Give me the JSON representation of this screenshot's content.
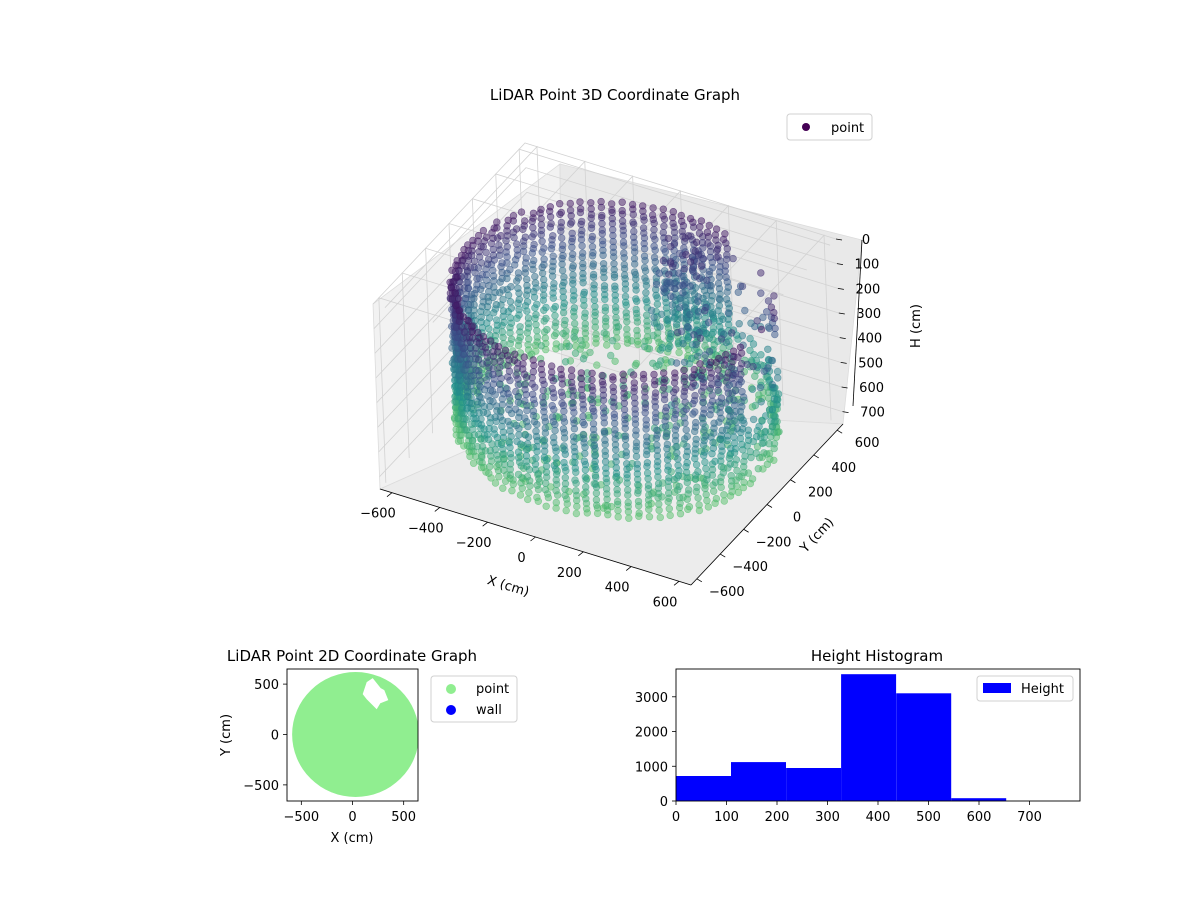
{
  "figure": {
    "background": "#ffffff"
  },
  "chart_data": [
    {
      "type": "scatter3d",
      "title": "LiDAR Point 3D Coordinate Graph",
      "xlabel": "X (cm)",
      "ylabel": "Y (cm)",
      "zlabel": "H (cm)",
      "xlim": [
        -650,
        650
      ],
      "ylim": [
        -650,
        650
      ],
      "zlim": [
        0,
        750
      ],
      "z_inverted": true,
      "xticks": [
        -600,
        -400,
        -200,
        0,
        200,
        400,
        600
      ],
      "yticks": [
        -600,
        -400,
        -200,
        0,
        200,
        400,
        600
      ],
      "zticks": [
        0,
        100,
        200,
        300,
        400,
        500,
        600,
        700
      ],
      "legend": [
        {
          "label": "point",
          "color": "#440154"
        }
      ],
      "legend_position": "top-right",
      "colormap": "viridis",
      "grid": true,
      "shape": {
        "kind": "cylindrical wall of points",
        "center": [
          30,
          0
        ],
        "radius": 600,
        "height_range": [
          50,
          650
        ],
        "opening_angle_range_deg": [
          -10,
          70
        ],
        "interior_objects": "cluster near x 0..200, y 300..600, heights 100..500"
      }
    },
    {
      "type": "scatter",
      "title": "LiDAR Point 2D Coordinate Graph",
      "xlabel": "X (cm)",
      "ylabel": "Y (cm)",
      "xlim": [
        -640,
        640
      ],
      "ylim": [
        -660,
        650
      ],
      "xticks": [
        -500,
        0,
        500
      ],
      "yticks": [
        -500,
        0,
        500
      ],
      "legend_position": "outside-right",
      "series": [
        {
          "name": "point",
          "color": "#90ee90",
          "shape": "filled disc",
          "center": [
            30,
            0
          ],
          "radius": 620,
          "hole": {
            "x": [
              100,
              350
            ],
            "y": [
              250,
              580
            ]
          }
        },
        {
          "name": "wall",
          "color": "#0000ff",
          "values": []
        }
      ]
    },
    {
      "type": "bar",
      "title": "Height Histogram",
      "xlim": [
        0,
        800
      ],
      "ylim": [
        0,
        3800
      ],
      "xticks": [
        0,
        100,
        200,
        300,
        400,
        500,
        600,
        700
      ],
      "yticks": [
        0,
        1000,
        2000,
        3000
      ],
      "legend": [
        {
          "label": "Height",
          "color": "#0000ff"
        }
      ],
      "legend_position": "top-right",
      "bin_edges": [
        0,
        109,
        218,
        327,
        436,
        545,
        654
      ],
      "values": [
        720,
        1120,
        950,
        3650,
        3100,
        80
      ],
      "color": "#0000ff"
    }
  ]
}
